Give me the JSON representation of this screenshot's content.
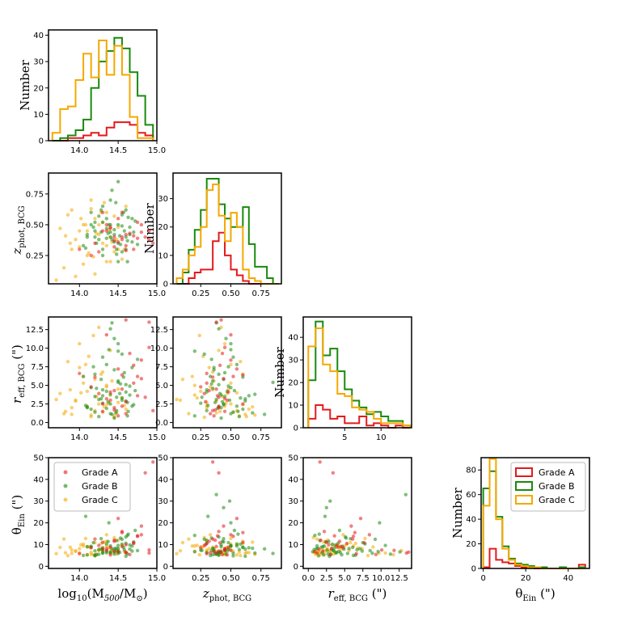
{
  "chart_data": {
    "type": "corner",
    "series": [
      {
        "name": "Grade A",
        "color": "#e41a1c"
      },
      {
        "name": "Grade B",
        "color": "#1a8a0d"
      },
      {
        "name": "Grade C",
        "color": "#f5a800"
      }
    ],
    "legend": {
      "position": "top-right",
      "entries": [
        "Grade A",
        "Grade B",
        "Grade C"
      ]
    },
    "variables": [
      {
        "key": "m500",
        "label": "log10(M500/M⊙)",
        "range": [
          13.6,
          15.0
        ],
        "ticks": [
          "14.0",
          "14.5",
          "15.0"
        ],
        "tick_values": [
          14.0,
          14.5,
          15.0
        ]
      },
      {
        "key": "zphot",
        "label": "z_phot, BCG",
        "range": [
          0.02,
          0.92
        ],
        "ticks": [
          "0.25",
          "0.50",
          "0.75"
        ],
        "tick_values": [
          0.25,
          0.5,
          0.75
        ]
      },
      {
        "key": "reff",
        "label": "r_eff, BCG (\")",
        "range": [
          -0.7,
          14.2
        ],
        "ticks": [
          "0.0",
          "2.5",
          "5.0",
          "7.5",
          "10.0",
          "12.5"
        ],
        "tick_values": [
          0,
          2.5,
          5,
          7.5,
          10,
          12.5
        ],
        "diag_ticks": [
          "5",
          "10"
        ],
        "diag_tick_values": [
          5,
          10
        ]
      },
      {
        "key": "theta",
        "label": "θ_Ein (\")",
        "range": [
          -1,
          50
        ],
        "ticks": [
          "0",
          "10",
          "20",
          "30",
          "40",
          "50"
        ],
        "tick_values": [
          0,
          10,
          20,
          30,
          40,
          50
        ],
        "diag_ticks": [
          "0",
          "20",
          "40"
        ],
        "diag_tick_values": [
          0,
          20,
          40
        ]
      }
    ],
    "labels": {
      "number": "Number",
      "m500": {
        "pre": "log",
        "sub": "10",
        "mid": "(M",
        "sub2": "500",
        "mid2": "/M",
        "sub3": "⊙",
        "post": ")"
      },
      "zphot": {
        "main": "z",
        "sub": "phot, BCG"
      },
      "reff": {
        "main": "r",
        "sub": "eff, BCG",
        "post": " (\")"
      },
      "theta": {
        "main": "θ",
        "sub": "Ein",
        "post": " (\")"
      }
    },
    "histograms": [
      {
        "var": "m500",
        "edges": [
          13.65,
          13.75,
          13.85,
          13.95,
          14.05,
          14.15,
          14.25,
          14.35,
          14.45,
          14.55,
          14.65,
          14.75,
          14.85,
          14.95
        ],
        "ylim": [
          0,
          42
        ],
        "yticks": [
          0,
          10,
          20,
          30,
          40
        ],
        "counts": {
          "Grade A": [
            0,
            0,
            1,
            1,
            2,
            3,
            2,
            5,
            7,
            7,
            6,
            3,
            2
          ],
          "Grade B": [
            0,
            1,
            2,
            4,
            8,
            20,
            30,
            34,
            39,
            35,
            26,
            17,
            6
          ],
          "Grade C": [
            3,
            12,
            13,
            23,
            33,
            24,
            38,
            25,
            36,
            25,
            9,
            1,
            1
          ]
        }
      },
      {
        "var": "zphot",
        "edges": [
          0.05,
          0.1,
          0.15,
          0.2,
          0.25,
          0.3,
          0.35,
          0.4,
          0.45,
          0.5,
          0.55,
          0.6,
          0.65,
          0.7,
          0.75,
          0.8,
          0.85,
          0.9
        ],
        "ylim": [
          0,
          39
        ],
        "yticks": [
          0,
          10,
          20,
          30
        ],
        "counts": {
          "Grade A": [
            0,
            0,
            2,
            4,
            5,
            5,
            15,
            18,
            10,
            5,
            3,
            1,
            0,
            0,
            0,
            0,
            0
          ],
          "Grade B": [
            0,
            4,
            12,
            19,
            26,
            37,
            37,
            28,
            23,
            20,
            20,
            27,
            14,
            6,
            6,
            2,
            0
          ],
          "Grade C": [
            2,
            5,
            10,
            13,
            20,
            33,
            35,
            24,
            15,
            25,
            20,
            5,
            2,
            1,
            0,
            0,
            0
          ]
        }
      },
      {
        "var": "reff",
        "edges": [
          0,
          1,
          2,
          3,
          4,
          5,
          6,
          7,
          8,
          9,
          10,
          11,
          12,
          13,
          14
        ],
        "ylim": [
          0,
          49
        ],
        "yticks": [
          0,
          10,
          20,
          30,
          40
        ],
        "counts": {
          "Grade A": [
            4,
            10,
            8,
            4,
            5,
            2,
            2,
            5,
            1,
            2,
            1,
            0,
            1,
            0
          ],
          "Grade B": [
            21,
            47,
            32,
            35,
            25,
            17,
            12,
            9,
            6,
            7,
            5,
            3,
            3,
            1
          ],
          "Grade C": [
            36,
            44,
            28,
            25,
            15,
            14,
            9,
            8,
            7,
            4,
            2,
            2,
            2,
            1
          ]
        }
      },
      {
        "var": "theta",
        "edges": [
          0,
          3,
          6,
          9,
          12,
          15,
          18,
          21,
          24,
          27,
          30,
          33,
          36,
          39,
          42,
          45,
          48
        ],
        "ylim": [
          0,
          90
        ],
        "yticks": [
          0,
          20,
          40,
          60,
          80
        ],
        "counts": {
          "Grade A": [
            1,
            16,
            7,
            5,
            4,
            2,
            1,
            1,
            0,
            0,
            0,
            0,
            0,
            0,
            0,
            3
          ],
          "Grade B": [
            65,
            79,
            42,
            18,
            8,
            4,
            3,
            2,
            1,
            1,
            0,
            0,
            1,
            0,
            0,
            1
          ],
          "Grade C": [
            51,
            89,
            40,
            16,
            7,
            3,
            2,
            1,
            1,
            0,
            0,
            0,
            0,
            0,
            0,
            0
          ]
        }
      }
    ],
    "scatter": {
      "Grade A": [
        [
          14.2,
          0.35,
          6.1,
          12.5
        ],
        [
          14.35,
          0.45,
          3.2,
          8.2
        ],
        [
          14.45,
          0.4,
          2.0,
          7.0
        ],
        [
          14.55,
          0.38,
          4.5,
          9.1
        ],
        [
          14.6,
          0.42,
          13.8,
          6.5
        ],
        [
          14.7,
          0.3,
          5.3,
          10.5
        ],
        [
          14.8,
          0.5,
          8.4,
          14.5
        ],
        [
          14.9,
          0.45,
          10.1,
          7.5
        ],
        [
          14.95,
          0.35,
          1.6,
          48.0
        ],
        [
          14.85,
          0.4,
          3.4,
          43.0
        ],
        [
          14.5,
          0.55,
          7.2,
          22.0
        ],
        [
          14.3,
          0.6,
          2.5,
          11.0
        ],
        [
          14.0,
          0.3,
          6.6,
          5.8
        ],
        [
          14.4,
          0.48,
          4.1,
          8.8
        ],
        [
          14.6,
          0.33,
          1.2,
          6.2
        ],
        [
          14.75,
          0.52,
          6.2,
          13.8
        ],
        [
          14.25,
          0.28,
          3.9,
          9.6
        ],
        [
          14.55,
          0.4,
          2.2,
          16.0
        ],
        [
          14.65,
          0.43,
          9.3,
          5.4
        ],
        [
          14.45,
          0.37,
          1.7,
          12.0
        ],
        [
          14.35,
          0.5,
          11.8,
          7.3
        ],
        [
          14.15,
          0.25,
          4.8,
          8.5
        ],
        [
          14.8,
          0.44,
          5.9,
          18.5
        ],
        [
          14.5,
          0.36,
          0.9,
          6.8
        ],
        [
          14.7,
          0.41,
          7.7,
          10.8
        ],
        [
          14.4,
          0.47,
          3.0,
          5.2
        ],
        [
          14.6,
          0.29,
          2.8,
          9.9
        ],
        [
          14.9,
          0.38,
          13.5,
          6.1
        ],
        [
          14.3,
          0.45,
          1.5,
          7.8
        ],
        [
          14.55,
          0.6,
          6.4,
          15.5
        ],
        [
          14.45,
          0.32,
          4.3,
          11.5
        ],
        [
          14.75,
          0.39,
          3.6,
          14.0
        ]
      ],
      "Grade B": [
        [
          14.1,
          0.4,
          2.1,
          5.2
        ],
        [
          14.2,
          0.45,
          3.5,
          7.1
        ],
        [
          14.3,
          0.3,
          4.4,
          6.3
        ],
        [
          14.4,
          0.5,
          1.2,
          9.4
        ],
        [
          14.5,
          0.35,
          5.6,
          8.2
        ],
        [
          14.6,
          0.62,
          2.9,
          4.6
        ],
        [
          14.35,
          0.55,
          7.8,
          10.3
        ],
        [
          14.45,
          0.42,
          0.6,
          6.7
        ],
        [
          14.25,
          0.38,
          3.1,
          5.5
        ],
        [
          14.55,
          0.28,
          9.2,
          12.4
        ],
        [
          14.65,
          0.48,
          4.9,
          7.9
        ],
        [
          14.15,
          0.6,
          1.8,
          8.8
        ],
        [
          14.05,
          0.33,
          6.2,
          5.0
        ],
        [
          14.7,
          0.44,
          2.4,
          11.2
        ],
        [
          14.4,
          0.7,
          3.8,
          6.1
        ],
        [
          14.5,
          0.5,
          10.6,
          9.6
        ],
        [
          14.3,
          0.25,
          2.6,
          7.4
        ],
        [
          14.6,
          0.4,
          5.1,
          13.5
        ],
        [
          14.2,
          0.52,
          1.4,
          4.8
        ],
        [
          14.45,
          0.36,
          7.1,
          8.1
        ],
        [
          14.35,
          0.47,
          4.2,
          6.9
        ],
        [
          14.55,
          0.58,
          3.3,
          10.2
        ],
        [
          14.75,
          0.34,
          8.5,
          7.2
        ],
        [
          14.1,
          0.42,
          2.0,
          9.0
        ],
        [
          14.5,
          0.85,
          5.4,
          5.9
        ],
        [
          14.62,
          0.2,
          0.9,
          14.2
        ],
        [
          14.4,
          0.4,
          12.6,
          6.6
        ],
        [
          14.3,
          0.65,
          3.6,
          8.5
        ],
        [
          14.48,
          0.3,
          1.6,
          11.8
        ],
        [
          14.58,
          0.45,
          6.7,
          7.6
        ],
        [
          14.22,
          0.35,
          4.6,
          5.3
        ],
        [
          14.68,
          0.55,
          2.2,
          9.3
        ],
        [
          14.38,
          0.5,
          9.8,
          20.0
        ],
        [
          14.52,
          0.41,
          3.9,
          6.4
        ],
        [
          14.42,
          0.78,
          1.1,
          8.0
        ],
        [
          14.28,
          0.44,
          5.8,
          12.7
        ],
        [
          14.62,
          0.37,
          2.7,
          5.7
        ],
        [
          14.18,
          0.48,
          7.5,
          10.9
        ],
        [
          14.48,
          0.26,
          3.4,
          7.3
        ],
        [
          14.72,
          0.53,
          4.3,
          16.5
        ],
        [
          14.35,
          0.39,
          1.9,
          6.2
        ],
        [
          14.57,
          0.6,
          6.1,
          8.7
        ],
        [
          14.08,
          0.31,
          2.3,
          23.0
        ],
        [
          14.45,
          0.46,
          11.3,
          5.6
        ],
        [
          14.65,
          0.42,
          3.7,
          9.8
        ],
        [
          14.25,
          0.57,
          0.8,
          7.7
        ],
        [
          14.53,
          0.34,
          5.2,
          13.0
        ],
        [
          14.4,
          0.44,
          2.5,
          27.0
        ],
        [
          14.3,
          0.52,
          8.8,
          6.0
        ],
        [
          14.6,
          0.3,
          4.1,
          10.6
        ],
        [
          14.47,
          0.68,
          1.3,
          8.3
        ],
        [
          14.2,
          0.4,
          6.5,
          5.1
        ],
        [
          14.55,
          0.49,
          3.0,
          30.0
        ],
        [
          14.68,
          0.36,
          7.4,
          7.0
        ],
        [
          14.37,
          0.43,
          2.8,
          11.4
        ],
        [
          14.5,
          0.2,
          9.6,
          6.8
        ],
        [
          14.15,
          0.5,
          4.7,
          9.2
        ],
        [
          14.63,
          0.56,
          1.5,
          14.8
        ],
        [
          14.42,
          0.38,
          13.4,
          33.0
        ],
        [
          14.28,
          0.62,
          3.2,
          7.9
        ]
      ],
      "Grade C": [
        [
          13.7,
          0.05,
          3.1,
          5.8
        ],
        [
          13.8,
          0.15,
          1.2,
          12.5
        ],
        [
          13.9,
          0.3,
          2.0,
          7.5
        ],
        [
          14.0,
          0.45,
          10.6,
          6.1
        ],
        [
          14.1,
          0.25,
          4.2,
          9.0
        ],
        [
          14.2,
          0.55,
          1.6,
          5.2
        ],
        [
          14.3,
          0.35,
          6.8,
          8.4
        ],
        [
          14.35,
          0.6,
          2.4,
          11.5
        ],
        [
          14.4,
          0.2,
          3.7,
          6.6
        ],
        [
          14.25,
          0.42,
          12.8,
          7.2
        ],
        [
          14.15,
          0.7,
          1.0,
          5.5
        ],
        [
          14.05,
          0.5,
          5.3,
          10.2
        ],
        [
          13.95,
          0.38,
          2.9,
          6.9
        ],
        [
          13.85,
          0.58,
          8.2,
          4.9
        ],
        [
          14.45,
          0.28,
          0.7,
          13.2
        ],
        [
          14.5,
          0.48,
          4.5,
          7.8
        ],
        [
          14.55,
          0.22,
          3.3,
          9.6
        ],
        [
          14.6,
          0.65,
          1.8,
          6.3
        ],
        [
          14.0,
          0.32,
          7.4,
          8.1
        ],
        [
          14.1,
          0.45,
          2.2,
          5.4
        ],
        [
          14.2,
          0.1,
          5.8,
          10.9
        ],
        [
          14.3,
          0.52,
          1.4,
          7.0
        ],
        [
          14.4,
          0.4,
          9.7,
          6.0
        ],
        [
          14.5,
          0.3,
          2.7,
          12.0
        ],
        [
          13.75,
          0.47,
          3.9,
          8.7
        ],
        [
          13.9,
          0.62,
          1.1,
          5.9
        ],
        [
          14.05,
          0.18,
          6.2,
          9.3
        ],
        [
          14.25,
          0.5,
          2.5,
          7.6
        ],
        [
          14.35,
          0.33,
          4.8,
          14.5
        ],
        [
          14.45,
          0.57,
          0.9,
          6.5
        ],
        [
          14.12,
          0.27,
          8.9,
          8.9
        ],
        [
          14.22,
          0.43,
          3.5,
          5.6
        ],
        [
          14.32,
          0.68,
          2.1,
          11.1
        ],
        [
          14.42,
          0.36,
          5.6,
          7.3
        ],
        [
          13.82,
          0.41,
          1.5,
          6.2
        ],
        [
          14.02,
          0.55,
          4.0,
          9.9
        ],
        [
          14.18,
          0.24,
          11.7,
          5.3
        ],
        [
          14.38,
          0.46,
          2.6,
          8.3
        ],
        [
          13.95,
          0.08,
          3.0,
          7.1
        ],
        [
          14.28,
          0.6,
          6.5,
          10.5
        ],
        [
          14.48,
          0.38,
          1.3,
          5.7
        ],
        [
          14.08,
          0.5,
          7.8,
          12.8
        ],
        [
          14.58,
          0.3,
          2.3,
          6.8
        ],
        [
          13.88,
          0.35,
          4.4,
          8.8
        ],
        [
          14.15,
          0.63,
          0.8,
          6.4
        ],
        [
          14.35,
          0.2,
          5.0,
          9.4
        ]
      ]
    }
  }
}
